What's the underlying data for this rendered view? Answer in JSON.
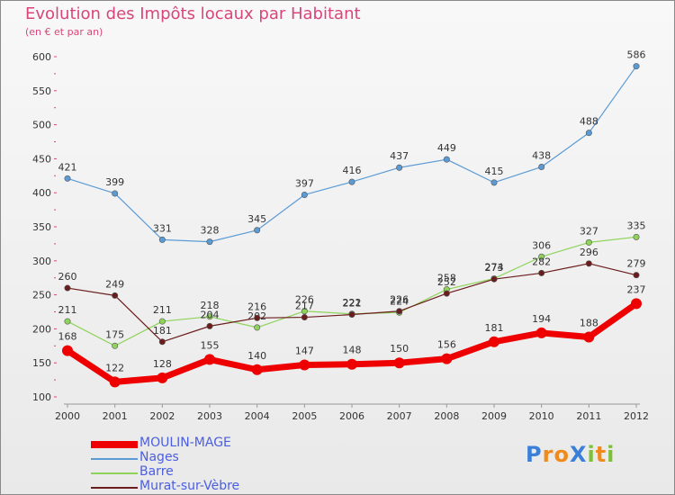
{
  "title": "Evolution des Impôts locaux par Habitant",
  "subtitle": "(en € et par an)",
  "logo": {
    "text": "Proxiti",
    "letters": [
      {
        "ch": "P",
        "color": "#3a7fd8"
      },
      {
        "ch": "r",
        "color": "#f08a1c"
      },
      {
        "ch": "o",
        "color": "#f08a1c"
      },
      {
        "ch": "X",
        "color": "#3a7fd8"
      },
      {
        "ch": "i",
        "color": "#7ec03a"
      },
      {
        "ch": "t",
        "color": "#f08a1c"
      },
      {
        "ch": "i",
        "color": "#7ec03a"
      }
    ]
  },
  "chart_data": {
    "type": "line",
    "x": [
      "2000",
      "2001",
      "2002",
      "2003",
      "2004",
      "2005",
      "2006",
      "2007",
      "2008",
      "2009",
      "2010",
      "2011",
      "2012"
    ],
    "ylim": [
      100,
      600
    ],
    "yticks": [
      100,
      150,
      200,
      250,
      300,
      350,
      400,
      450,
      500,
      550,
      600
    ],
    "grid": false,
    "legend_position": "bottom-left",
    "series": [
      {
        "name": "MOULIN-MAGE",
        "color": "#ee0000",
        "values": [
          168,
          122,
          128,
          155,
          140,
          147,
          148,
          150,
          156,
          181,
          194,
          188,
          237
        ]
      },
      {
        "name": "Nages",
        "color": "#5b9bd5",
        "values": [
          421,
          399,
          331,
          328,
          345,
          397,
          416,
          437,
          449,
          415,
          438,
          488,
          586
        ]
      },
      {
        "name": "Barre",
        "color": "#8ed35a",
        "values": [
          211,
          175,
          211,
          218,
          202,
          226,
          222,
          224,
          258,
          274,
          306,
          327,
          335
        ]
      },
      {
        "name": "Murat-sur-Vèbre",
        "color": "#6b1c1c",
        "values": [
          260,
          249,
          181,
          204,
          216,
          217,
          221,
          226,
          252,
          273,
          282,
          296,
          279
        ]
      }
    ]
  }
}
